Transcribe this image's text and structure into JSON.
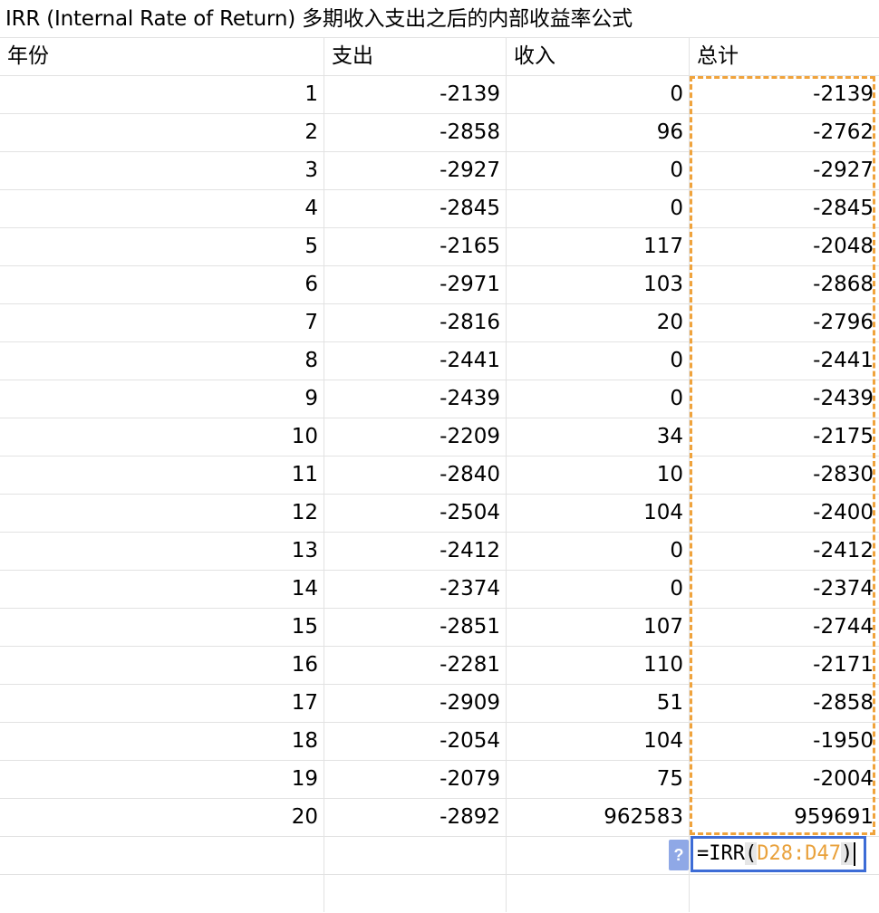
{
  "title": "IRR (Internal Rate of Return) 多期收入支出之后的内部收益率公式",
  "headers": [
    "年份",
    "支出",
    "收入",
    "总计"
  ],
  "rows": [
    [
      "1",
      "-2139",
      "0",
      "-2139"
    ],
    [
      "2",
      "-2858",
      "96",
      "-2762"
    ],
    [
      "3",
      "-2927",
      "0",
      "-2927"
    ],
    [
      "4",
      "-2845",
      "0",
      "-2845"
    ],
    [
      "5",
      "-2165",
      "117",
      "-2048"
    ],
    [
      "6",
      "-2971",
      "103",
      "-2868"
    ],
    [
      "7",
      "-2816",
      "20",
      "-2796"
    ],
    [
      "8",
      "-2441",
      "0",
      "-2441"
    ],
    [
      "9",
      "-2439",
      "0",
      "-2439"
    ],
    [
      "10",
      "-2209",
      "34",
      "-2175"
    ],
    [
      "11",
      "-2840",
      "10",
      "-2830"
    ],
    [
      "12",
      "-2504",
      "104",
      "-2400"
    ],
    [
      "13",
      "-2412",
      "0",
      "-2412"
    ],
    [
      "14",
      "-2374",
      "0",
      "-2374"
    ],
    [
      "15",
      "-2851",
      "107",
      "-2744"
    ],
    [
      "16",
      "-2281",
      "110",
      "-2171"
    ],
    [
      "17",
      "-2909",
      "51",
      "-2858"
    ],
    [
      "18",
      "-2054",
      "104",
      "-1950"
    ],
    [
      "19",
      "-2079",
      "75",
      "-2004"
    ],
    [
      "20",
      "-2892",
      "962583",
      "959691"
    ]
  ],
  "formula": {
    "prefix": "=IRR",
    "open_paren": "(",
    "range": "D28:D47",
    "close_paren": ")"
  },
  "help_icon": "?",
  "colors": {
    "range_highlight": "#f0a33c",
    "active_cell_border": "#3d6cd6",
    "help_badge": "#8fa8e6"
  }
}
